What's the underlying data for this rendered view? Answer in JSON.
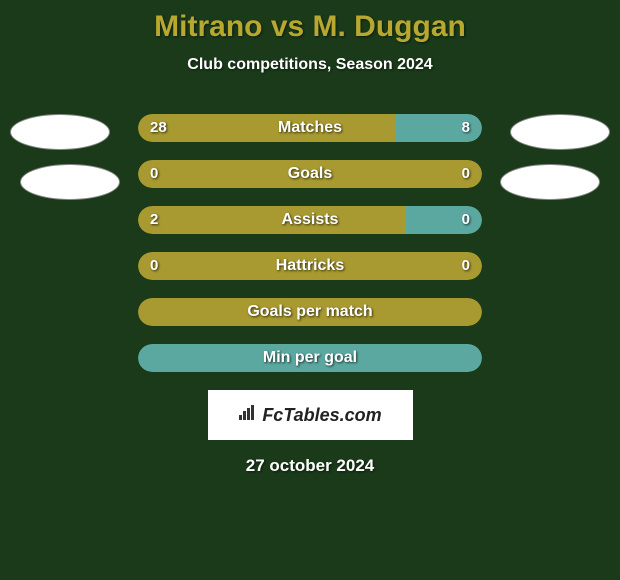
{
  "title": "Mitrano vs M. Duggan",
  "subtitle": "Club competitions, Season 2024",
  "date": "27 october 2024",
  "watermark": "FcTables.com",
  "colors": {
    "background": "#1a3a1a",
    "bar_olive": "#a89930",
    "bar_teal": "#5ba8a0",
    "title": "#b8a830",
    "text": "#ffffff"
  },
  "bars": [
    {
      "label": "Matches",
      "left_value": "28",
      "right_value": "8",
      "left_width_pct": 75,
      "right_width_pct": 25,
      "left_color": "#a89930",
      "right_color": "#5ba8a0",
      "show_values": true,
      "full": false
    },
    {
      "label": "Goals",
      "left_value": "0",
      "right_value": "0",
      "left_width_pct": 100,
      "right_width_pct": 0,
      "left_color": "#a89930",
      "right_color": "#5ba8a0",
      "show_values": true,
      "full": true
    },
    {
      "label": "Assists",
      "left_value": "2",
      "right_value": "0",
      "left_width_pct": 78,
      "right_width_pct": 22,
      "left_color": "#a89930",
      "right_color": "#5ba8a0",
      "show_values": true,
      "full": false
    },
    {
      "label": "Hattricks",
      "left_value": "0",
      "right_value": "0",
      "left_width_pct": 100,
      "right_width_pct": 0,
      "left_color": "#a89930",
      "right_color": "#5ba8a0",
      "show_values": true,
      "full": true
    },
    {
      "label": "Goals per match",
      "left_value": "",
      "right_value": "",
      "left_width_pct": 100,
      "right_width_pct": 0,
      "left_color": "#a89930",
      "right_color": "#5ba8a0",
      "show_values": false,
      "full": true
    },
    {
      "label": "Min per goal",
      "left_value": "",
      "right_value": "",
      "left_width_pct": 100,
      "right_width_pct": 0,
      "left_color": "#5ba8a0",
      "right_color": "#a89930",
      "show_values": false,
      "full": true
    }
  ]
}
